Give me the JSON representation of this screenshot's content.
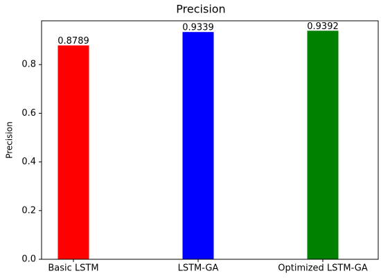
{
  "chart_data": {
    "type": "bar",
    "title": "Precision",
    "y_label": "Precision",
    "categories": [
      "Basic LSTM",
      "LSTM-GA",
      "Optimized LSTM-GA"
    ],
    "values": [
      0.8789,
      0.9339,
      0.9392
    ],
    "colors": [
      "#ff0000",
      "#0000ff",
      "#008000"
    ],
    "ylim": [
      0,
      0.98
    ],
    "yticks": [
      {
        "value": 0,
        "label": "0.0"
      },
      0.2,
      0.4,
      0.6,
      0.8
    ],
    "grid": false
  }
}
